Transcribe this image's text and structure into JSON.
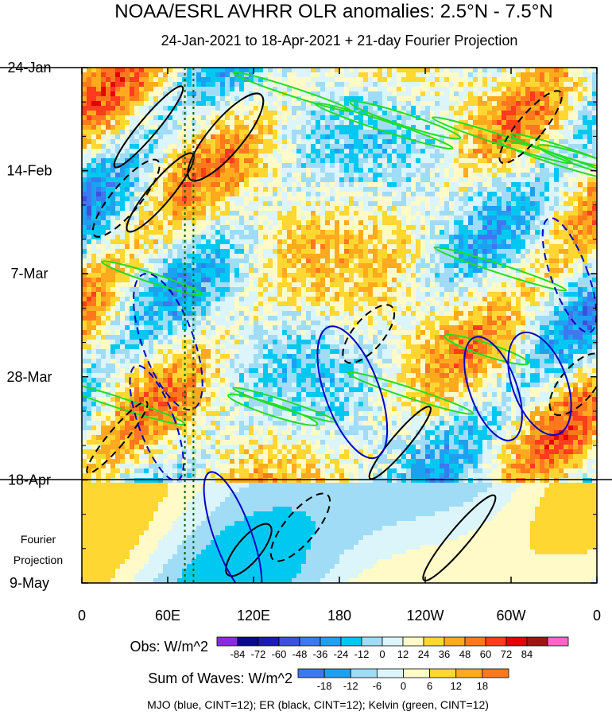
{
  "title": "NOAA/ESRL AVHRR OLR anomalies: 2.5°N - 7.5°N",
  "subtitle": "24-Jan-2021 to 18-Apr-2021 + 21-day Fourier Projection",
  "chart_data": {
    "type": "heatmap",
    "title": "NOAA/ESRL AVHRR OLR anomalies: 2.5°N - 7.5°N",
    "subtitle": "24-Jan-2021 to 18-Apr-2021 + 21-day Fourier Projection",
    "x_ticks": [
      {
        "lon": 0,
        "label": "0"
      },
      {
        "lon": 60,
        "label": "60E"
      },
      {
        "lon": 120,
        "label": "120E"
      },
      {
        "lon": 180,
        "label": "180"
      },
      {
        "lon": 240,
        "label": "120W"
      },
      {
        "lon": 300,
        "label": "60W"
      },
      {
        "lon": 360,
        "label": "0"
      }
    ],
    "y_ticks": [
      {
        "day": 0,
        "label": "24-Jan"
      },
      {
        "day": 21,
        "label": "14-Feb"
      },
      {
        "day": 42,
        "label": "7-Mar"
      },
      {
        "day": 63,
        "label": "28-Mar"
      },
      {
        "day": 84,
        "label": "18-Apr"
      },
      {
        "day": 105,
        "label": "9-May"
      }
    ],
    "x_range": [
      0,
      360
    ],
    "y_range_days": [
      0,
      105
    ],
    "observation_end_day": 84,
    "projection_label_line1": "Fourier",
    "projection_label_line2": "Projection",
    "reference_lines_lon": [
      72,
      78
    ],
    "obs_colorbar": {
      "label": "Obs: W/m^2",
      "levels": [
        "-84",
        "-72",
        "-60",
        "-48",
        "-36",
        "-24",
        "-12",
        "0",
        "12",
        "24",
        "36",
        "48",
        "60",
        "72",
        "84"
      ],
      "colors": [
        "#8a2be2",
        "#0a0a8c",
        "#1a1ab4",
        "#3c50dc",
        "#3c78f0",
        "#1ea0f0",
        "#00c8f0",
        "#a0dcf5",
        "#dcf5fa",
        "#fffac8",
        "#ffd732",
        "#ffaa1e",
        "#ff781e",
        "#ff3c1e",
        "#e60000",
        "#a01414",
        "#ff64c8"
      ]
    },
    "waves_colorbar": {
      "label": "Sum of Waves: W/m^2",
      "levels": [
        "-18",
        "-12",
        "-6",
        "0",
        "6",
        "12",
        "18"
      ],
      "colors": [
        "#3c78f0",
        "#1ea0f0",
        "#a0dcf5",
        "#dcf5fa",
        "#fffac8",
        "#ffd732",
        "#ffaa1e",
        "#ff781e"
      ]
    },
    "contours": [
      {
        "name": "MJO",
        "color": "#0000c8",
        "cint": 12
      },
      {
        "name": "ER",
        "color": "#000000",
        "cint": 12
      },
      {
        "name": "Kelvin",
        "color": "#22dd22",
        "cint": 12
      }
    ]
  },
  "footer": "MJO (blue, CINT=12); ER (black, CINT=12); Kelvin (green, CINT=12)"
}
